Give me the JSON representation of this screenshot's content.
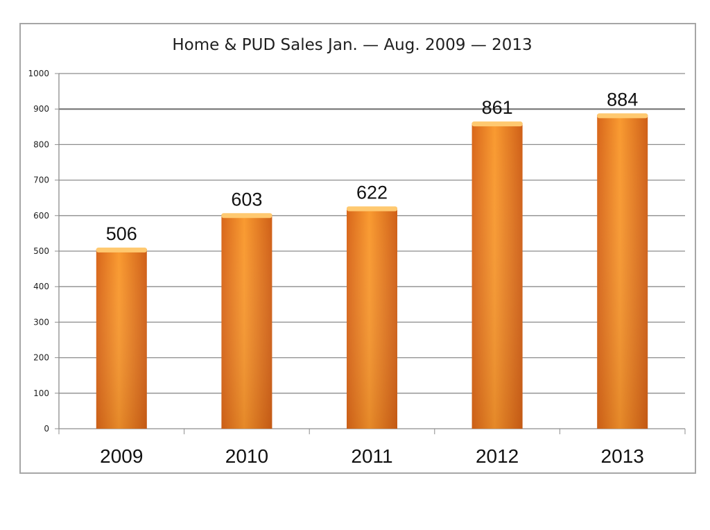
{
  "chart_data": {
    "type": "bar",
    "title": "Home & PUD Sales Jan. — Aug. 2009 — 2013",
    "xlabel": "",
    "ylabel": "",
    "categories": [
      "2009",
      "2010",
      "2011",
      "2012",
      "2013"
    ],
    "values": [
      506,
      603,
      622,
      861,
      884
    ],
    "data_labels": [
      "506",
      "603",
      "622",
      "861",
      "884"
    ],
    "ylim": [
      0,
      1000
    ],
    "yticks": [
      0,
      100,
      200,
      300,
      400,
      500,
      600,
      700,
      800,
      900,
      1000
    ],
    "ytick_labels": [
      "0",
      "100",
      "200",
      "300",
      "400",
      "500",
      "600",
      "700",
      "800",
      "900",
      "1000"
    ],
    "grid": true,
    "legend": "none",
    "bar_color": "#f08a24"
  }
}
